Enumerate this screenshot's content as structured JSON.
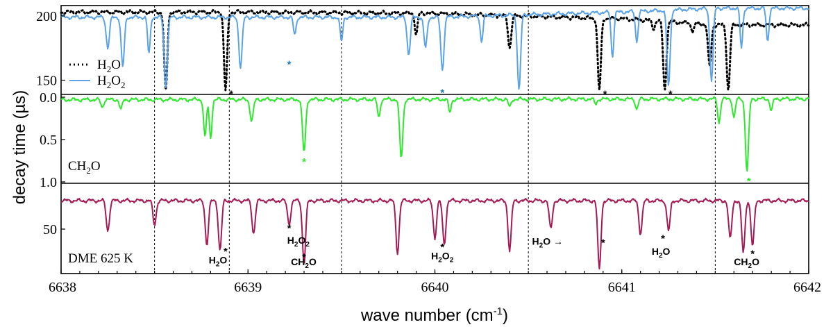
{
  "chart_data": {
    "type": "line",
    "xlabel": "wave number (cm",
    "xlabel_sup": "-1",
    "xlabel_close": ")",
    "ylabel": "decay time (µs)",
    "xlim": [
      6638,
      6642
    ],
    "x_ticks": [
      "6638",
      "6639",
      "6640",
      "6641",
      "6642"
    ],
    "dashed_separators_x": [
      6638.5,
      6638.9,
      6639.5,
      6640.5,
      6641.5
    ],
    "panels": [
      {
        "id": "top",
        "ylim": [
          140,
          207
        ],
        "y_ticks": [
          {
            "value": 200,
            "label": "200"
          },
          {
            "value": 150,
            "label": "150"
          }
        ],
        "legend": [
          {
            "name": "H",
            "sub": "2",
            "tail": "O",
            "style": "dotted",
            "color": "#000000"
          },
          {
            "name": "H",
            "sub": "2",
            "tail": "O",
            "sub2": "2",
            "style": "solid",
            "color": "#5ba3e6"
          }
        ],
        "series": [
          {
            "name": "H2O",
            "color": "#000000",
            "style": "dotted",
            "baseline": [
              [
                6638,
                203
              ],
              [
                6639,
                203
              ],
              [
                6640,
                202
              ],
              [
                6640.9,
                198
              ],
              [
                6641,
                198
              ],
              [
                6641.5,
                193
              ],
              [
                6642,
                193
              ]
            ],
            "dips": [
              [
                6638.56,
                142,
                0.012
              ],
              [
                6638.88,
                142,
                0.012
              ],
              [
                6639.9,
                185,
                0.01
              ],
              [
                6640.4,
                175,
                0.012
              ],
              [
                6640.88,
                142,
                0.012
              ],
              [
                6641.17,
                190,
                0.01
              ],
              [
                6641.23,
                142,
                0.012
              ],
              [
                6641.38,
                188,
                0.01
              ],
              [
                6641.47,
                160,
                0.012
              ],
              [
                6641.57,
                142,
                0.012
              ]
            ]
          },
          {
            "name": "H2O2",
            "color": "#5ba3e6",
            "style": "solid",
            "baseline": [
              [
                6638,
                199
              ],
              [
                6639,
                199
              ],
              [
                6640,
                199
              ],
              [
                6641,
                203
              ],
              [
                6641.5,
                206
              ],
              [
                6642,
                206
              ]
            ],
            "dips": [
              [
                6638.25,
                175,
                0.012
              ],
              [
                6638.33,
                160,
                0.012
              ],
              [
                6638.47,
                170,
                0.01
              ],
              [
                6638.56,
                145,
                0.012
              ],
              [
                6638.96,
                160,
                0.012
              ],
              [
                6639.25,
                185,
                0.01
              ],
              [
                6639.5,
                180,
                0.01
              ],
              [
                6639.86,
                170,
                0.012
              ],
              [
                6639.95,
                175,
                0.012
              ],
              [
                6640.04,
                158,
                0.012
              ],
              [
                6640.25,
                180,
                0.01
              ],
              [
                6640.45,
                142,
                0.012
              ],
              [
                6640.95,
                168,
                0.01
              ],
              [
                6641.08,
                180,
                0.01
              ],
              [
                6641.25,
                145,
                0.012
              ],
              [
                6641.48,
                150,
                0.012
              ],
              [
                6641.64,
                175,
                0.01
              ],
              [
                6641.78,
                180,
                0.01
              ]
            ]
          }
        ],
        "stars": [
          {
            "x": 6638.91,
            "y": 142,
            "color": "#000000"
          },
          {
            "x": 6639.22,
            "y": 165,
            "color": "#1f78b4"
          },
          {
            "x": 6640.04,
            "y": 143,
            "color": "#1f78b4"
          },
          {
            "x": 6640.91,
            "y": 142,
            "color": "#000000"
          },
          {
            "x": 6641.26,
            "y": 142,
            "color": "#000000"
          }
        ]
      },
      {
        "id": "middle",
        "ylim": [
          0,
          1.0
        ],
        "y_ticks": [
          {
            "value": 0.0,
            "label": "0.0"
          },
          {
            "value": 0.5,
            "label": "0.5"
          },
          {
            "value": 1.0,
            "label": "1.0"
          }
        ],
        "label": {
          "pre": "CH",
          "sub": "2",
          "post": "O"
        },
        "series": [
          {
            "name": "CH2O",
            "color": "#2ee82e",
            "style": "solid",
            "baseline": [
              [
                6638,
                0.03
              ],
              [
                6642,
                0.02
              ]
            ],
            "dips": [
              [
                6638.22,
                0.12,
                0.01
              ],
              [
                6638.32,
                0.15,
                0.01
              ],
              [
                6638.77,
                0.48,
                0.01
              ],
              [
                6638.8,
                0.48,
                0.01
              ],
              [
                6639.02,
                0.28,
                0.012
              ],
              [
                6639.3,
                0.65,
                0.012
              ],
              [
                6639.7,
                0.24,
                0.01
              ],
              [
                6639.82,
                0.72,
                0.012
              ],
              [
                6640.08,
                0.18,
                0.01
              ],
              [
                6640.4,
                0.12,
                0.01
              ],
              [
                6640.86,
                0.08,
                0.01
              ],
              [
                6641.08,
                0.14,
                0.01
              ],
              [
                6641.52,
                0.3,
                0.01
              ],
              [
                6641.6,
                0.24,
                0.01
              ],
              [
                6641.67,
                0.88,
                0.012
              ],
              [
                6641.8,
                0.16,
                0.01
              ]
            ]
          }
        ],
        "stars": [
          {
            "x": 6639.3,
            "y": 0.72,
            "color": "#2ee82e"
          },
          {
            "x": 6641.68,
            "y": 0.95,
            "color": "#2ee82e"
          }
        ]
      },
      {
        "id": "bottom",
        "ylim": [
          0,
          100
        ],
        "y_ticks": [
          {
            "value": 50,
            "label": "50"
          }
        ],
        "label": {
          "pre": "DME 625 K",
          "sub": "",
          "post": ""
        },
        "series": [
          {
            "name": "DME 625 K",
            "color": "#a31a55",
            "style": "solid",
            "baseline": [
              [
                6638,
                83
              ],
              [
                6642,
                83
              ]
            ],
            "dips": [
              [
                6638.25,
                48,
                0.012
              ],
              [
                6638.5,
                55,
                0.012
              ],
              [
                6638.78,
                32,
                0.012
              ],
              [
                6638.85,
                25,
                0.012
              ],
              [
                6639.03,
                45,
                0.012
              ],
              [
                6639.22,
                56,
                0.012
              ],
              [
                6639.3,
                10,
                0.012
              ],
              [
                6639.8,
                22,
                0.012
              ],
              [
                6640.0,
                40,
                0.012
              ],
              [
                6640.05,
                32,
                0.012
              ],
              [
                6640.4,
                25,
                0.012
              ],
              [
                6640.62,
                50,
                0.012
              ],
              [
                6640.88,
                3,
                0.012
              ],
              [
                6641.1,
                45,
                0.012
              ],
              [
                6641.25,
                48,
                0.012
              ],
              [
                6641.58,
                38,
                0.012
              ],
              [
                6641.65,
                22,
                0.012
              ],
              [
                6641.7,
                30,
                0.012
              ]
            ]
          }
        ],
        "annotations": [
          {
            "x": 6638.88,
            "y": 25,
            "star": true,
            "text": [
              {
                "t": "H"
              },
              {
                "t": "2",
                "sub": true
              },
              {
                "t": "O"
              }
            ],
            "tx": 6638.79,
            "ty": 10
          },
          {
            "x": 6639.22,
            "y": 52,
            "star": true,
            "text": [
              {
                "t": "H"
              },
              {
                "t": "2",
                "sub": true
              },
              {
                "t": "O"
              },
              {
                "t": "2",
                "sub": true
              }
            ],
            "tx": 6639.21,
            "ty": 33
          },
          {
            "x": 6639.3,
            "y": 18,
            "star": true,
            "text": [
              {
                "t": "CH"
              },
              {
                "t": "2",
                "sub": true
              },
              {
                "t": "O"
              }
            ],
            "tx": 6639.23,
            "ty": 8
          },
          {
            "x": 6640.04,
            "y": 30,
            "star": true,
            "text": [
              {
                "t": "H"
              },
              {
                "t": "2",
                "sub": true
              },
              {
                "t": "O"
              },
              {
                "t": "2",
                "sub": true
              }
            ],
            "tx": 6639.98,
            "ty": 15
          },
          {
            "x": 6640.9,
            "y": 35,
            "star": true,
            "text": [
              {
                "t": "H"
              },
              {
                "t": "2",
                "sub": true
              },
              {
                "t": "O →"
              }
            ],
            "tx": 6640.52,
            "ty": 32
          },
          {
            "x": 6641.22,
            "y": 40,
            "star": true,
            "text": [
              {
                "t": "H"
              },
              {
                "t": "2",
                "sub": true
              },
              {
                "t": "O"
              }
            ],
            "tx": 6641.16,
            "ty": 20
          },
          {
            "x": 6641.7,
            "y": 22,
            "star": true,
            "text": [
              {
                "t": "CH"
              },
              {
                "t": "2",
                "sub": true
              },
              {
                "t": "O"
              }
            ],
            "tx": 6641.6,
            "ty": 8
          }
        ]
      }
    ]
  }
}
